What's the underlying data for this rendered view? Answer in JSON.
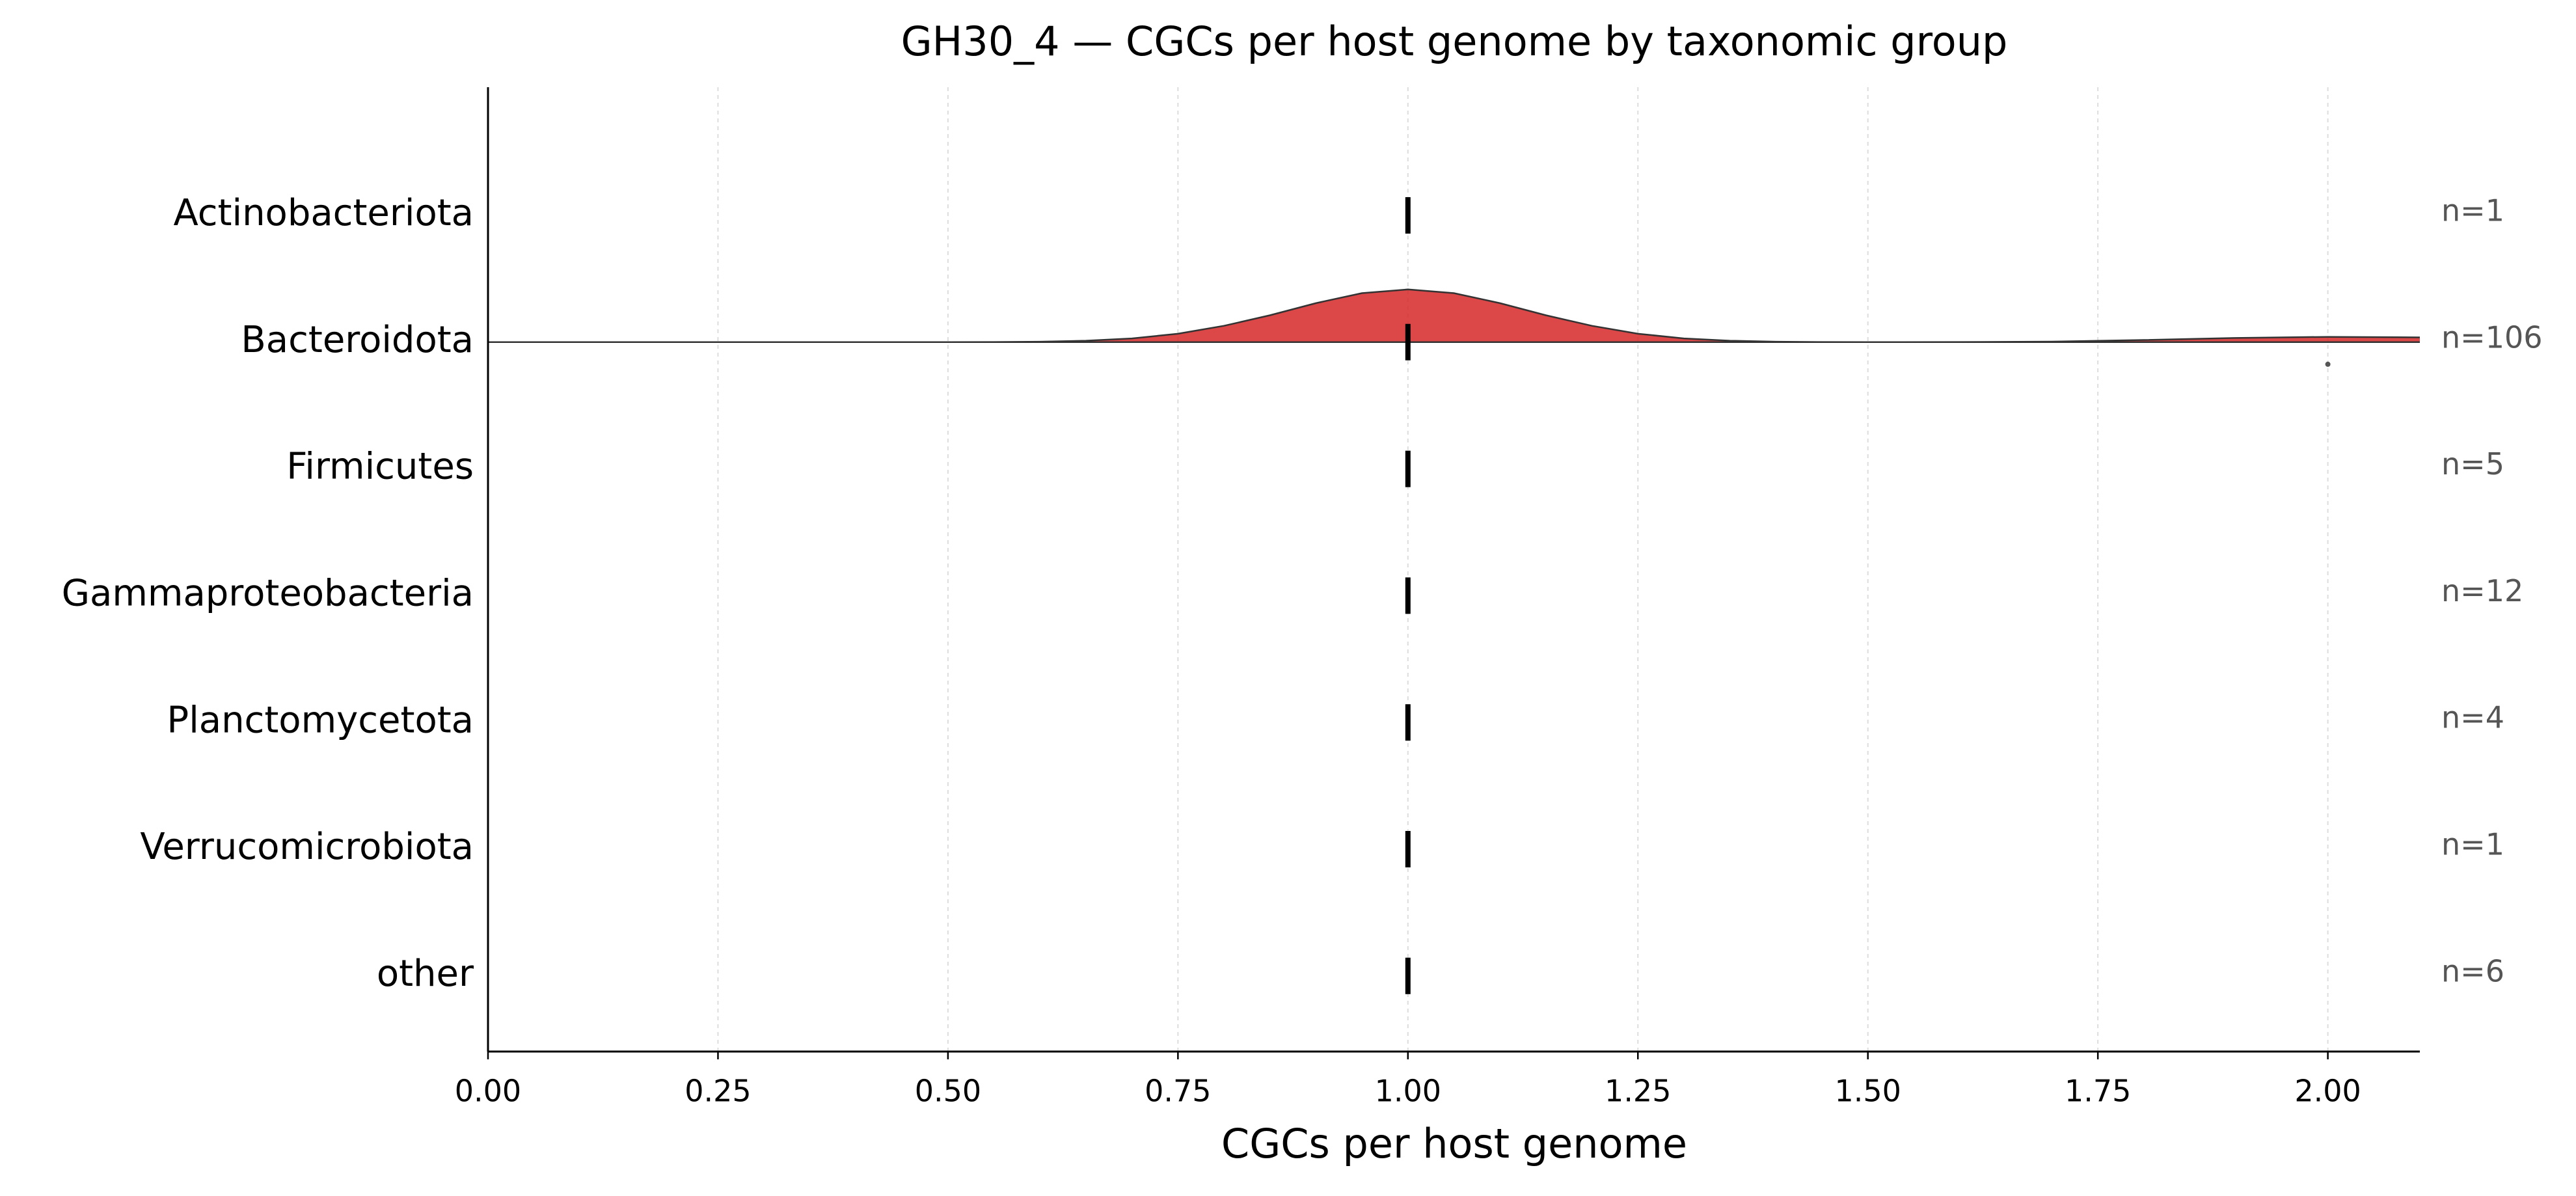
{
  "chart_data": {
    "type": "ridgeline",
    "title": "GH30_4 — CGCs per host genome by taxonomic group",
    "x_label": "CGCs per host genome",
    "categories": [
      "Actinobacteriota",
      "Bacteroidota",
      "Firmicutes",
      "Gammaproteobacteria",
      "Planctomycetota",
      "Verrucomicrobiota",
      "other"
    ],
    "medians": [
      1.0,
      1.0,
      1.0,
      1.0,
      1.0,
      1.0,
      1.0
    ],
    "count_labels": [
      "n=1",
      "n=106",
      "n=5",
      "n=12",
      "n=4",
      "n=1",
      "n=6"
    ],
    "series": [
      {
        "name": "Bacteroidota",
        "color": "#d62728",
        "x": [
          0,
          0.5,
          0.55,
          0.6,
          0.65,
          0.7,
          0.75,
          0.8,
          0.85,
          0.9,
          0.95,
          1.0,
          1.05,
          1.1,
          1.15,
          1.2,
          1.25,
          1.3,
          1.35,
          1.4,
          1.45,
          1.5,
          1.6,
          1.7,
          1.8,
          1.9,
          2.0,
          2.1
        ],
        "density": [
          0,
          0,
          0.002,
          0.009,
          0.027,
          0.07,
          0.16,
          0.31,
          0.51,
          0.74,
          0.93,
          1,
          0.93,
          0.74,
          0.51,
          0.31,
          0.16,
          0.07,
          0.027,
          0.009,
          0.002,
          0,
          0.002,
          0.01,
          0.04,
          0.08,
          0.1,
          0.09
        ],
        "outliers": [
          2.0
        ]
      }
    ],
    "xlim": [
      0,
      2.1
    ],
    "xticks": [
      {
        "value": 0,
        "label": "0.00"
      },
      {
        "value": 0.25,
        "label": "0.25"
      },
      {
        "value": 0.5,
        "label": "0.50"
      },
      {
        "value": 0.75,
        "label": "0.75"
      },
      {
        "value": 1,
        "label": "1.00"
      },
      {
        "value": 1.25,
        "label": "1.25"
      },
      {
        "value": 1.5,
        "label": "1.50"
      },
      {
        "value": 1.75,
        "label": "1.75"
      },
      {
        "value": 2,
        "label": "2.00"
      }
    ],
    "grid": true
  }
}
